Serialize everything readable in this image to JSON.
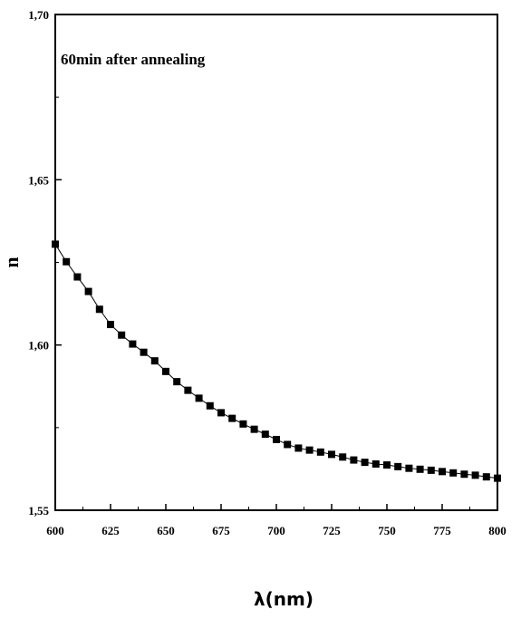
{
  "chart_data": {
    "type": "line",
    "title": "",
    "annotation": "60min after annealing",
    "xlabel": "λ(nm)",
    "ylabel": "n",
    "xlim": [
      600,
      800
    ],
    "ylim": [
      1.55,
      1.7
    ],
    "x_ticks": [
      600,
      625,
      650,
      675,
      700,
      725,
      750,
      775,
      800
    ],
    "x_tick_labels": [
      "600",
      "625",
      "650",
      "675",
      "700",
      "725",
      "750",
      "775",
      "800"
    ],
    "y_ticks": [
      1.55,
      1.6,
      1.65,
      1.7
    ],
    "y_tick_labels": [
      "1,55",
      "1,60",
      "1,65",
      "1,70"
    ],
    "grid": false,
    "marker": "square",
    "series": [
      {
        "x": [
          600,
          605,
          610,
          615,
          620,
          625,
          630,
          635,
          640,
          645,
          650,
          655,
          660,
          665,
          670,
          675,
          680,
          685,
          690,
          695,
          700,
          705,
          710,
          715,
          720,
          725,
          730,
          735,
          740,
          745,
          750,
          755,
          760,
          765,
          770,
          775,
          780,
          785,
          790,
          795,
          800
        ],
        "values": [
          1.6305,
          1.6252,
          1.6206,
          1.6162,
          1.6108,
          1.6062,
          1.603,
          1.6003,
          1.5978,
          1.5952,
          1.592,
          1.5889,
          1.5863,
          1.5839,
          1.5816,
          1.5795,
          1.5778,
          1.5761,
          1.5745,
          1.573,
          1.5714,
          1.5699,
          1.5688,
          1.5682,
          1.5676,
          1.5669,
          1.5661,
          1.5652,
          1.5645,
          1.564,
          1.5637,
          1.5632,
          1.5627,
          1.5624,
          1.5621,
          1.5617,
          1.5613,
          1.5609,
          1.5606,
          1.5601,
          1.5597
        ]
      }
    ]
  }
}
